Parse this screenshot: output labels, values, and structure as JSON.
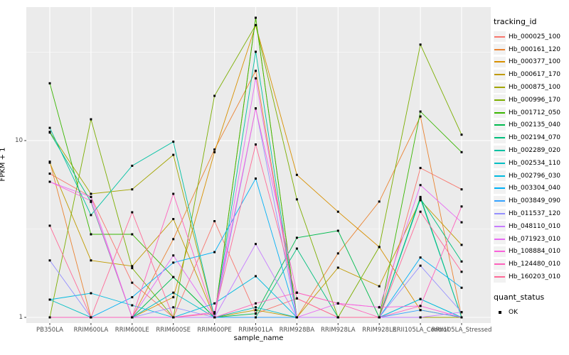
{
  "figure": {
    "background": "#FFFFFF",
    "panel_background": "#EBEBEB",
    "grid_color": "#FFFFFF",
    "tick_label_color": "#4D4D4D",
    "point_color": "#000000"
  },
  "axes": {
    "x_title": "sample_name",
    "y_title": "FPKM + 1"
  },
  "legend": {
    "tracking_title": "tracking_id",
    "quant_title": "quant_status",
    "quant_ok_label": "OK"
  },
  "chart_data": {
    "type": "line",
    "title": "",
    "xlabel": "sample_name",
    "ylabel": "FPKM + 1",
    "y_scale": "log10",
    "ylim": [
      0.93,
      57
    ],
    "y_ticks": [
      1,
      10
    ],
    "y_minor_ticks": [
      3.1623,
      31.623
    ],
    "grid": "major-and-minor, white on gray panel",
    "legend_position": "right",
    "marker": "small black square (quant_status = OK)",
    "categories": [
      "PB350LA",
      "RRIM600LA",
      "RRIM600LE",
      "RRIM600SE",
      "RRIM600PE",
      "RRIM901LA",
      "RRIM928BA",
      "RRIM928LA",
      "RRIM928LE",
      "RRII105LA_Control",
      "RRII105LA_Stressed"
    ],
    "series": [
      {
        "name": "Hb_000025_100",
        "color": "#F8766D",
        "values": [
          6.5,
          4.8,
          1.57,
          1.0,
          3.5,
          1.05,
          1.28,
          1.0,
          1.0,
          7.0,
          5.3
        ]
      },
      {
        "name": "Hb_000161_120",
        "color": "#EA8331",
        "values": [
          7.6,
          1.0,
          1.0,
          2.77,
          8.9,
          24.8,
          1.0,
          2.3,
          4.52,
          13.7,
          1.0
        ]
      },
      {
        "name": "Hb_000377_100",
        "color": "#D89000",
        "values": [
          1.0,
          1.0,
          1.0,
          1.3,
          8.6,
          45.0,
          6.4,
          3.96,
          2.5,
          1.1,
          1.0
        ]
      },
      {
        "name": "Hb_000617_170",
        "color": "#C09B00",
        "values": [
          7.5,
          2.1,
          1.95,
          3.6,
          1.0,
          1.1,
          1.0,
          1.91,
          1.5,
          4.6,
          2.57
        ]
      },
      {
        "name": "Hb_000875_100",
        "color": "#A3A500",
        "values": [
          11.2,
          5.0,
          5.3,
          8.3,
          1.0,
          49.5,
          1.0,
          1.0,
          1.0,
          1.0,
          1.0
        ]
      },
      {
        "name": "Hb_000996_170",
        "color": "#7CAE00",
        "values": [
          1.0,
          13.2,
          1.9,
          1.0,
          17.9,
          45.0,
          4.65,
          1.0,
          2.5,
          34.9,
          10.8
        ]
      },
      {
        "name": "Hb_001712_050",
        "color": "#39B600",
        "values": [
          21.1,
          2.95,
          2.95,
          1.69,
          1.0,
          49.5,
          1.0,
          1.0,
          1.0,
          14.6,
          8.6
        ]
      },
      {
        "name": "Hb_002135_040",
        "color": "#00BB4E",
        "values": [
          1.0,
          1.0,
          1.0,
          1.69,
          1.0,
          1.05,
          2.82,
          3.09,
          1.0,
          4.8,
          1.0
        ]
      },
      {
        "name": "Hb_002194_070",
        "color": "#00BF7D",
        "values": [
          11.1,
          4.5,
          1.0,
          1.0,
          1.0,
          1.0,
          2.45,
          1.0,
          1.0,
          4.7,
          2.07
        ]
      },
      {
        "name": "Hb_002289_020",
        "color": "#00C1A3",
        "values": [
          11.8,
          3.79,
          7.2,
          9.85,
          1.0,
          31.8,
          1.0,
          1.0,
          1.0,
          4.7,
          1.0
        ]
      },
      {
        "name": "Hb_002534_110",
        "color": "#00BFC4",
        "values": [
          1.26,
          1.0,
          1.0,
          1.38,
          1.0,
          1.14,
          1.0,
          1.0,
          1.0,
          1.27,
          1.0
        ]
      },
      {
        "name": "Hb_002796_030",
        "color": "#00BAE0",
        "values": [
          1.26,
          1.37,
          1.17,
          1.0,
          1.2,
          1.71,
          1.0,
          1.0,
          1.0,
          1.27,
          1.0
        ]
      },
      {
        "name": "Hb_003304_040",
        "color": "#00B0F6",
        "values": [
          1.0,
          1.0,
          1.3,
          2.04,
          2.34,
          6.1,
          1.0,
          1.0,
          1.0,
          2.18,
          1.47
        ]
      },
      {
        "name": "Hb_003849_090",
        "color": "#35A2FF",
        "values": [
          1.0,
          1.0,
          1.0,
          1.0,
          1.0,
          1.0,
          1.0,
          1.0,
          1.0,
          1.1,
          1.0
        ]
      },
      {
        "name": "Hb_011537_120",
        "color": "#9590FF",
        "values": [
          2.1,
          1.0,
          1.0,
          1.14,
          1.0,
          15.2,
          1.0,
          1.0,
          1.0,
          1.96,
          1.07
        ]
      },
      {
        "name": "Hb_048110_010",
        "color": "#C77CFF",
        "values": [
          1.0,
          1.0,
          1.0,
          1.0,
          1.0,
          2.6,
          1.0,
          1.0,
          1.0,
          1.0,
          1.07
        ]
      },
      {
        "name": "Hb_071923_010",
        "color": "#E76BF3",
        "values": [
          5.85,
          4.8,
          1.0,
          2.24,
          1.0,
          22.5,
          1.0,
          1.2,
          1.14,
          5.6,
          3.45
        ]
      },
      {
        "name": "Hb_108884_010",
        "color": "#FA62DB",
        "values": [
          5.85,
          4.56,
          1.0,
          1.0,
          1.07,
          15.2,
          1.38,
          1.2,
          1.14,
          1.16,
          1.0
        ]
      },
      {
        "name": "Hb_124480_010",
        "color": "#FF62BC",
        "values": [
          1.0,
          1.0,
          1.0,
          5.0,
          1.0,
          1.2,
          1.38,
          1.2,
          1.0,
          1.16,
          4.24
        ]
      },
      {
        "name": "Hb_160203_010",
        "color": "#FF6A98",
        "values": [
          3.3,
          1.0,
          3.93,
          1.0,
          1.05,
          9.5,
          1.28,
          1.0,
          1.0,
          3.96,
          1.81
        ]
      }
    ]
  }
}
